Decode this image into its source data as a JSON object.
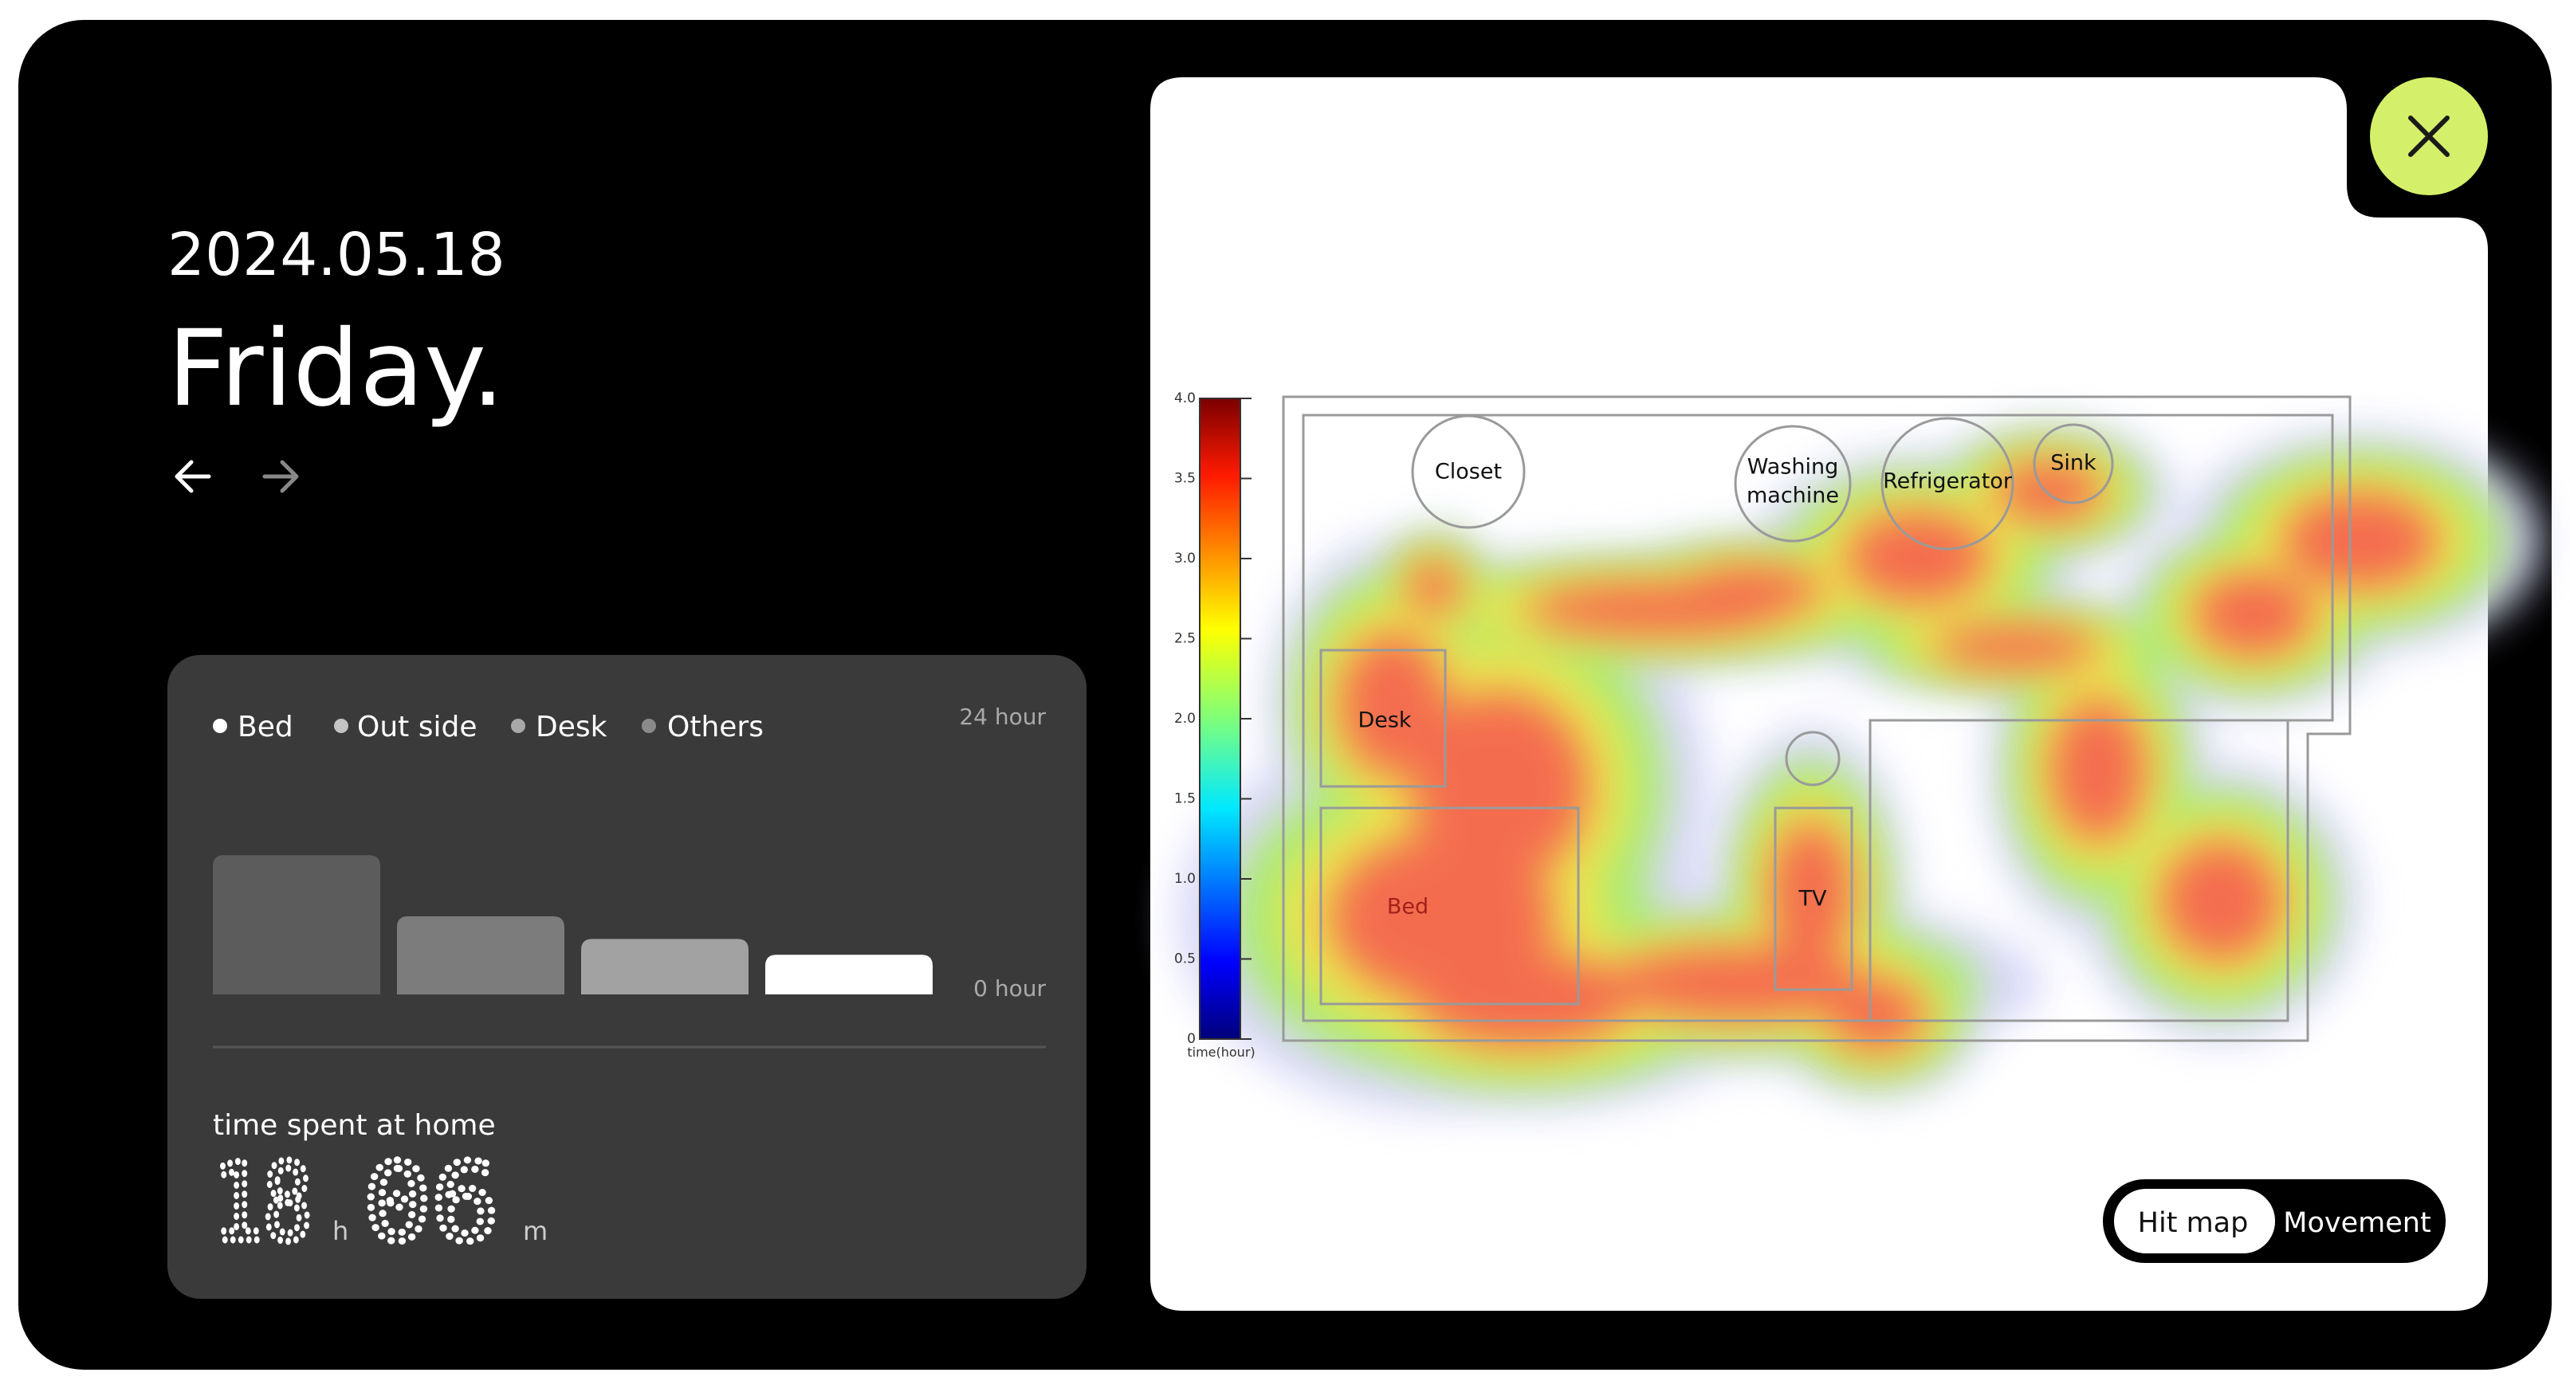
{
  "header": {
    "date": "2024.05.18",
    "day": "Friday."
  },
  "chart_data": [
    {
      "type": "bar",
      "categories": [
        "Bed",
        "Out side",
        "Desk",
        "Others"
      ],
      "values": [
        12.3,
        6.9,
        4.9,
        3.5
      ],
      "colors": [
        "#5c5c5c",
        "#7c7c7c",
        "#a2a2a2",
        "#ffffff"
      ],
      "legend_colors": [
        "#ffffff",
        "#c4c4c4",
        "#a8a8a8",
        "#8a8a8a"
      ],
      "ylim": [
        0,
        24
      ],
      "yticks": [
        {
          "value": 0,
          "label": "0 hour"
        },
        {
          "value": 24,
          "label": "24 hour"
        }
      ]
    },
    {
      "type": "heatmap",
      "colorbar_label": "time(hour)",
      "ylim": [
        0,
        4
      ],
      "yticks": [
        0,
        0.5,
        {
          "value": 1,
          "label": "1.0"
        },
        1.5,
        {
          "value": 2,
          "label": "2.0"
        },
        2.5,
        {
          "value": 3,
          "label": "3.0"
        },
        3.5,
        {
          "value": 4,
          "label": "4.0"
        }
      ],
      "annotations": [
        "Closet",
        "Washing",
        "machine",
        "Refrigerator",
        "Sink",
        "Desk",
        "TV",
        "Bed"
      ]
    }
  ],
  "time_spent": {
    "label": "time spent at home",
    "hours": "18",
    "hours_unit": "h",
    "minutes": "06",
    "minutes_unit": "m"
  },
  "toggle": {
    "options": [
      "Hit map",
      "Movement"
    ]
  }
}
